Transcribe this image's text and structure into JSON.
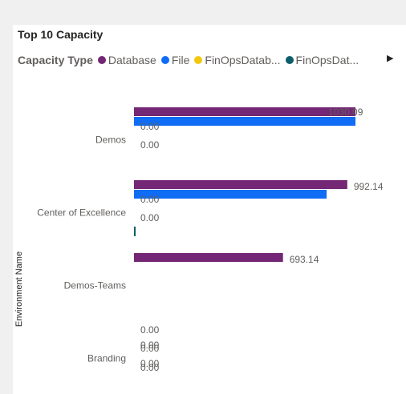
{
  "visual": {
    "title": "Top 10 Capacity",
    "legend_title": "Capacity Type",
    "legend_next_icon": "chevron-right-icon"
  },
  "legend": [
    {
      "label": "Database",
      "color": "#742774"
    },
    {
      "label": "File",
      "color": "#0f6cf5"
    },
    {
      "label": "FinOpsDatab...",
      "color": "#f2c80f"
    },
    {
      "label": "FinOpsDat...",
      "color": "#0c5e6b"
    }
  ],
  "chart_data": {
    "type": "bar",
    "orientation": "horizontal",
    "title": "Top 10 Capacity",
    "ylabel": "Environment Name",
    "xlabel": "",
    "categories": [
      "Demos",
      "Center of Excellence",
      "Demos-Teams",
      "Branding"
    ],
    "series": [
      {
        "name": "Database",
        "values": [
          1030.09,
          992.14,
          693.14,
          null
        ],
        "labels": [
          "",
          "992.14",
          "693.14",
          ""
        ]
      },
      {
        "name": "File",
        "values": [
          1030.09,
          896.0,
          null,
          null
        ],
        "labels": [
          "1030.09",
          "",
          "",
          ""
        ]
      },
      {
        "name": "FinOpsDatab...",
        "values": [
          0,
          0,
          null,
          0
        ],
        "labels": [
          "0.00",
          "0.00",
          "",
          "0.00"
        ]
      },
      {
        "name": "FinOpsDat...",
        "values": [
          0,
          0,
          null,
          0
        ],
        "labels": [
          "0.00",
          "0.00",
          "",
          "0.00"
        ]
      }
    ],
    "extra_bar": {
      "category": "Center of Excellence",
      "series": "FinOpsDat...",
      "visible_stub": true
    },
    "extra_labels": {
      "Branding": [
        "0.00",
        "0.00",
        "0.00"
      ]
    },
    "xlim": [
      0,
      1030.09
    ],
    "legend_position": "top-left",
    "grid": false
  }
}
